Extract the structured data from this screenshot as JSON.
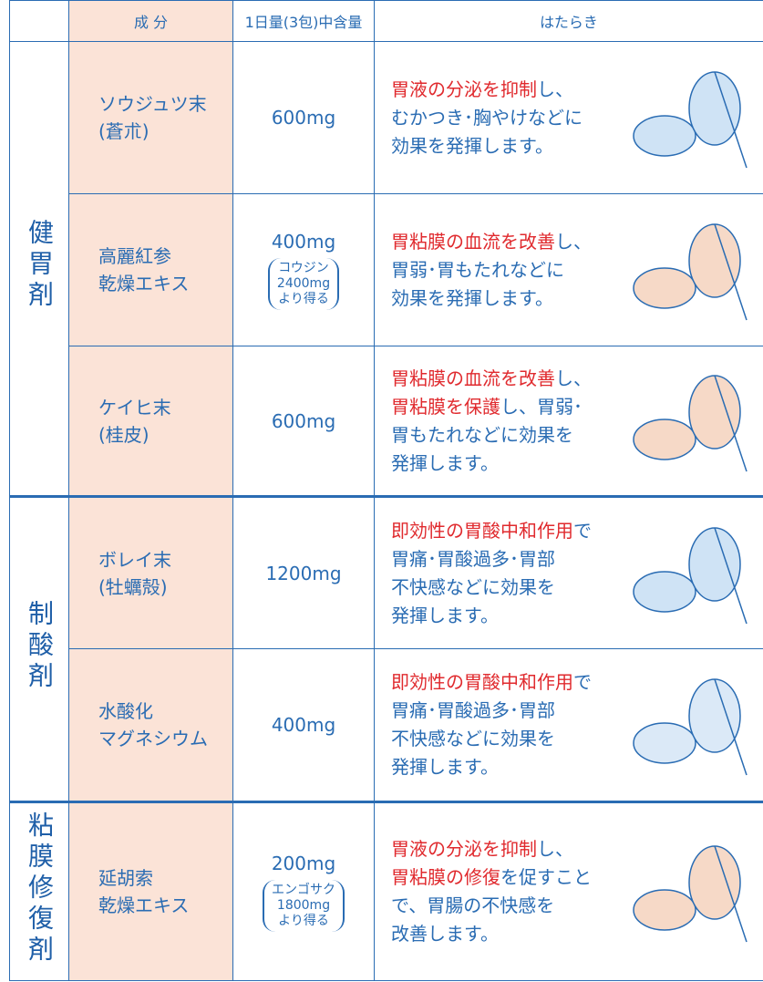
{
  "header": [
    "成 分",
    "1日量(3包)中含量",
    "はたらき"
  ],
  "groups": [
    {
      "label": "健胃剤",
      "rows": [
        {
          "ingredient": [
            "ソウジュツ末",
            "(蒼朮)"
          ],
          "amount": "600mg",
          "note": [],
          "function": [
            [
              {
                "text": "胃液の分泌を抑制",
                "highlight": true
              },
              {
                "text": "し、",
                "highlight": false
              }
            ],
            [
              {
                "text": "むかつき･胸やけなどに",
                "highlight": false
              }
            ],
            [
              {
                "text": "効果を発揮します。",
                "highlight": false
              }
            ]
          ]
        },
        {
          "ingredient": [
            "高麗紅参",
            "乾燥エキス"
          ],
          "amount": "400mg",
          "note": [
            "コウジン",
            "2400mg",
            "より得る"
          ],
          "function": [
            [
              {
                "text": "胃粘膜の血流を改善",
                "highlight": true
              },
              {
                "text": "し、",
                "highlight": false
              }
            ],
            [
              {
                "text": "胃弱･胃もたれなどに",
                "highlight": false
              }
            ],
            [
              {
                "text": "効果を発揮します。",
                "highlight": false
              }
            ]
          ]
        },
        {
          "ingredient": [
            "ケイヒ末",
            "(桂皮)"
          ],
          "amount": "600mg",
          "note": [],
          "function": [
            [
              {
                "text": "胃粘膜の血流を改善",
                "highlight": true
              },
              {
                "text": "し、",
                "highlight": false
              }
            ],
            [
              {
                "text": "胃粘膜を保護",
                "highlight": true
              },
              {
                "text": "し、胃弱･",
                "highlight": false
              }
            ],
            [
              {
                "text": "胃もたれなどに効果を",
                "highlight": false
              }
            ],
            [
              {
                "text": "発揮します。",
                "highlight": false
              }
            ]
          ]
        }
      ]
    },
    {
      "label": "制酸剤",
      "rows": [
        {
          "ingredient": [
            "ボレイ末",
            "(牡蠣殻)"
          ],
          "amount": "1200mg",
          "note": [],
          "function": [
            [
              {
                "text": "即効性の胃酸中和作用",
                "highlight": true
              },
              {
                "text": "で",
                "highlight": false
              }
            ],
            [
              {
                "text": "胃痛･胃酸過多･胃部",
                "highlight": false
              }
            ],
            [
              {
                "text": "不快感などに効果を",
                "highlight": false
              }
            ],
            [
              {
                "text": "発揮します。",
                "highlight": false
              }
            ]
          ]
        },
        {
          "ingredient": [
            "水酸化",
            "マグネシウム"
          ],
          "amount": "400mg",
          "note": [],
          "function": [
            [
              {
                "text": "即効性の胃酸中和作用",
                "highlight": true
              },
              {
                "text": "で",
                "highlight": false
              }
            ],
            [
              {
                "text": "胃痛･胃酸過多･胃部",
                "highlight": false
              }
            ],
            [
              {
                "text": "不快感などに効果を",
                "highlight": false
              }
            ],
            [
              {
                "text": "発揮します。",
                "highlight": false
              }
            ]
          ]
        }
      ]
    },
    {
      "label": "粘膜修復剤",
      "rows": [
        {
          "ingredient": [
            "延胡索",
            "乾燥エキス"
          ],
          "amount": "200mg",
          "note": [
            "エンゴサク",
            "1800mg",
            "より得る"
          ],
          "function": [
            [
              {
                "text": "胃液の分泌を抑制",
                "highlight": true
              },
              {
                "text": "し、",
                "highlight": false
              }
            ],
            [
              {
                "text": "胃粘膜の修復",
                "highlight": true
              },
              {
                "text": "を促すこと",
                "highlight": false
              }
            ],
            [
              {
                "text": "で、胃腸の不快感を",
                "highlight": false
              }
            ],
            [
              {
                "text": "改善します。",
                "highlight": false
              }
            ]
          ]
        }
      ]
    }
  ]
}
